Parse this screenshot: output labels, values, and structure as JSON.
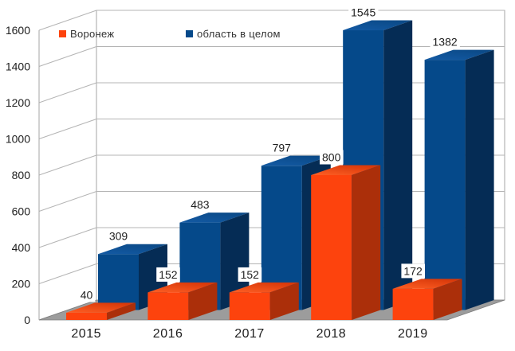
{
  "chart_data": {
    "type": "bar",
    "projection": "3d",
    "title": "",
    "xlabel": "",
    "ylabel": "",
    "categories": [
      "2015",
      "2016",
      "2017",
      "2018",
      "2019"
    ],
    "series": [
      {
        "name": "Воронеж",
        "values": [
          40,
          152,
          152,
          800,
          172
        ],
        "color": "#fd430d",
        "color_top_near": "#ff5f24",
        "color_top_far": "#d8390a",
        "color_side": "#ab2f0a"
      },
      {
        "name": "область в целом",
        "values": [
          309,
          483,
          797,
          1545,
          1382
        ],
        "color": "#05498a",
        "color_top_near": "#135aa4",
        "color_top_far": "#0b4a88",
        "color_side": "#052c55"
      }
    ],
    "ylim": [
      0,
      1600
    ],
    "ytick_step": 200,
    "yticks": [
      0,
      200,
      400,
      600,
      800,
      1000,
      1200,
      1400,
      1600
    ],
    "grid": true,
    "data_labels": true,
    "legend_position": "top-inside",
    "appearance": {
      "background": "#ffffff",
      "grid_color": "#b4b4b4",
      "wall_edge_color": "#a6a6a6",
      "floor_color": "#9c9c9c",
      "floor_edge_color": "#7c7c7c",
      "tick_label_color": "#202020",
      "value_label_color": "#1c1c1c",
      "legend_text_color": "#333333"
    }
  }
}
